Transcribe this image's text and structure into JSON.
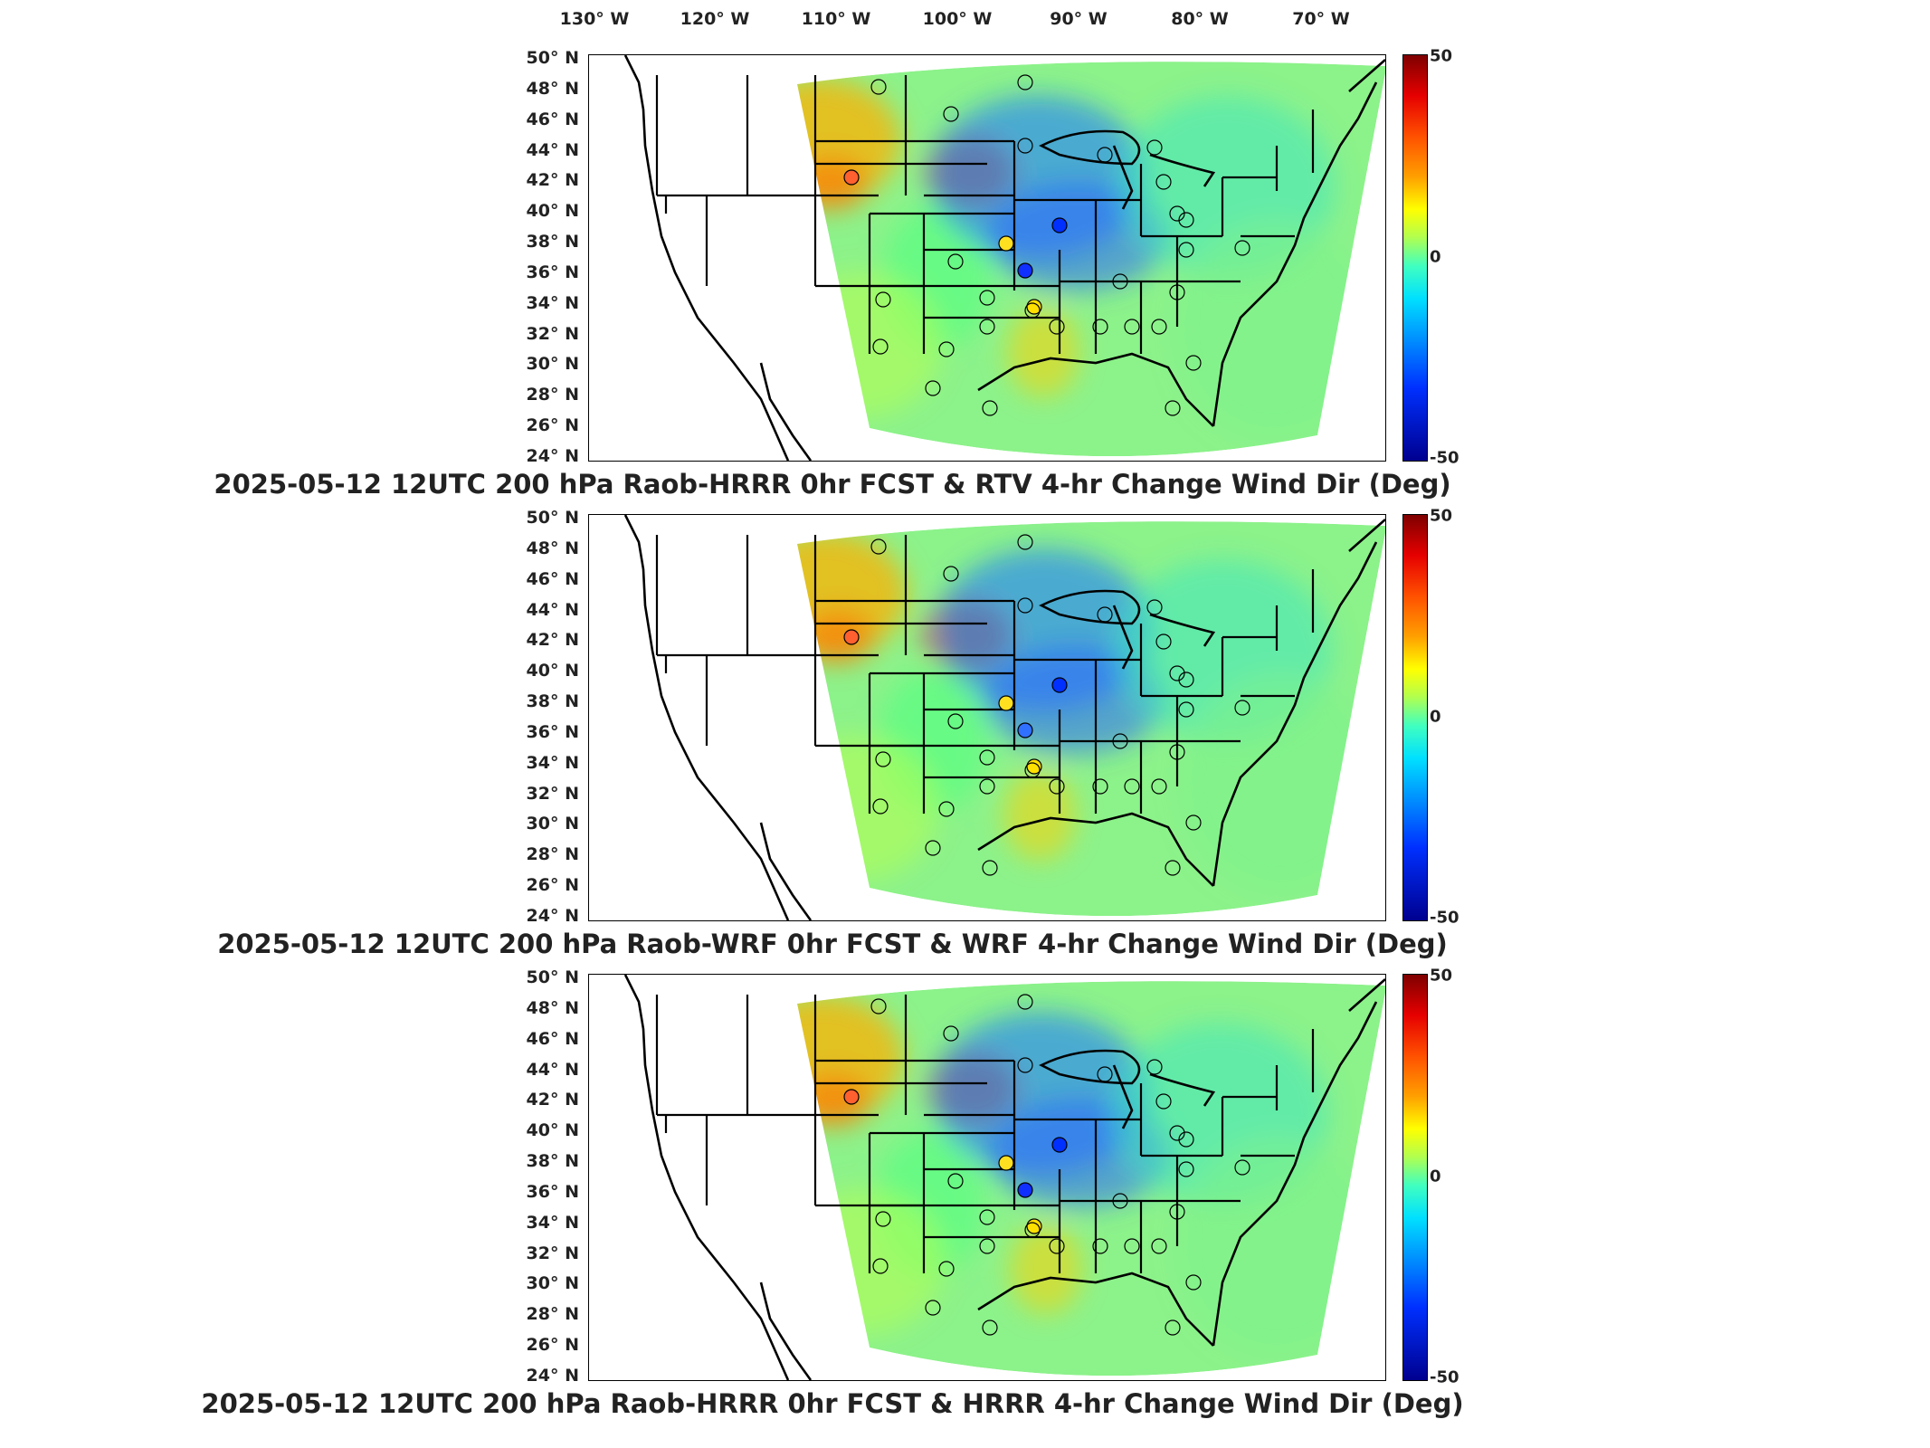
{
  "longitude_labels": [
    "130° W",
    "120° W",
    "110° W",
    "100° W",
    "90° W",
    "80° W",
    "70° W"
  ],
  "latitude_labels": [
    "50° N",
    "48° N",
    "46° N",
    "44° N",
    "42° N",
    "40° N",
    "38° N",
    "36° N",
    "34° N",
    "32° N",
    "30° N",
    "28° N",
    "26° N",
    "24° N"
  ],
  "colorbar": {
    "max": "50",
    "mid": "0",
    "min": "-50"
  },
  "colors": {
    "positive": "#e60000",
    "neutral": "#8cff8c",
    "negative": "#0000c8",
    "state_lines": "#000000"
  },
  "panels": [
    {
      "caption": "2025-05-12 12UTC 200 hPa Raob-HRRR 0hr FCST & RTV 4-hr Change Wind Dir (Deg)"
    },
    {
      "caption": "2025-05-12 12UTC 200 hPa Raob-WRF 0hr FCST & WRF 4-hr Change Wind Dir (Deg)"
    },
    {
      "caption": "2025-05-12 12UTC 200 hPa Raob-HRRR 0hr FCST & HRRR 4-hr Change Wind Dir (Deg)"
    }
  ]
}
